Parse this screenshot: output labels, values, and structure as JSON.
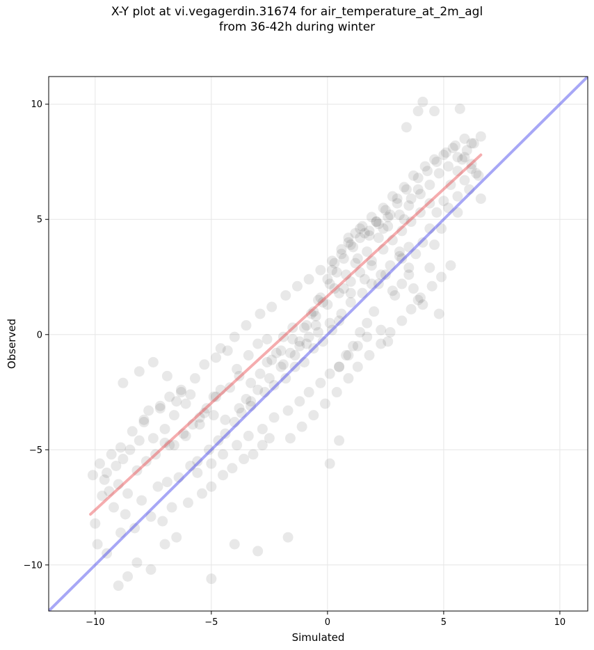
{
  "chart_data": {
    "type": "scatter",
    "title": "X-Y plot at vi.vegagerdin.31674 for air_temperature_at_2m_agl",
    "subtitle": "from 36-42h during winter",
    "xlabel": "Simulated",
    "ylabel": "Observed",
    "xlim": [
      -12.0,
      11.2
    ],
    "ylim": [
      -12.0,
      11.2
    ],
    "xticks": [
      -10,
      -5,
      0,
      5,
      10
    ],
    "yticks": [
      -10,
      -5,
      0,
      5,
      10
    ],
    "xtick_labels": [
      "−10",
      "−5",
      "0",
      "5",
      "10"
    ],
    "ytick_labels": [
      "−10",
      "−5",
      "0",
      "5",
      "10"
    ],
    "grid": true,
    "colors": {
      "points": "#000000",
      "fit_line": "#e8474b",
      "identity_line": "#3b3bea",
      "grid": "#e6e6e6"
    },
    "lines": [
      {
        "kind": "regression",
        "x": [
          -10.2,
          6.6
        ],
        "y": [
          -7.8,
          7.8
        ]
      },
      {
        "kind": "identity",
        "x": [
          -12.0,
          11.2
        ],
        "y": [
          -12.0,
          11.2
        ]
      }
    ],
    "points": {
      "x": [
        -10.1,
        -9.8,
        -9.6,
        -9.5,
        -9.3,
        -9.1,
        -8.9,
        -8.8,
        -8.5,
        -8.4,
        -8.1,
        -7.9,
        -7.7,
        -7.5,
        -7.2,
        -7.0,
        -6.8,
        -6.6,
        -6.3,
        -6.1,
        -9.7,
        -9.4,
        -9.0,
        -8.6,
        -8.2,
        -7.8,
        -7.4,
        -7.0,
        -6.6,
        -6.2,
        -5.8,
        -5.5,
        -5.2,
        -4.9,
        -4.6,
        -10.0,
        -9.2,
        -8.7,
        -8.0,
        -7.3,
        -6.9,
        -6.4,
        -5.9,
        -5.6,
        -5.1,
        -4.7,
        -4.4,
        -4.0,
        -3.7,
        -3.3,
        -9.9,
        -9.5,
        -8.9,
        -8.3,
        -7.6,
        -7.1,
        -6.7,
        -6.0,
        -5.4,
        -5.0,
        -4.5,
        -4.1,
        -3.6,
        -3.2,
        -2.8,
        -2.5,
        -8.8,
        -8.1,
        -7.5,
        -6.9,
        -6.3,
        -5.7,
        -5.3,
        -4.8,
        -4.3,
        -3.9,
        -3.4,
        -3.0,
        -2.6,
        -2.2,
        -1.9,
        -1.5,
        -7.9,
        -7.2,
        -6.5,
        -5.9,
        -5.3,
        -4.8,
        -4.2,
        -3.8,
        -3.3,
        -2.9,
        -2.4,
        -2.0,
        -1.6,
        -1.2,
        -0.8,
        -0.5,
        -6.8,
        -6.1,
        -5.5,
        -4.9,
        -4.4,
        -3.8,
        -3.3,
        -2.7,
        -2.3,
        -1.8,
        -1.4,
        -1.0,
        -0.6,
        -0.2,
        0.2,
        0.5,
        -5.6,
        -5.0,
        -4.5,
        -3.9,
        -3.4,
        -2.8,
        -2.3,
        -1.7,
        -1.2,
        -0.8,
        -0.3,
        0.1,
        0.5,
        0.9,
        1.3,
        1.7,
        -4.6,
        -4.0,
        -3.5,
        -2.9,
        -2.4,
        -1.8,
        -1.3,
        -0.8,
        -0.3,
        0.2,
        0.6,
        1.0,
        1.4,
        1.8,
        2.2,
        2.6,
        -3.5,
        -3.0,
        -2.5,
        -1.9,
        -1.4,
        -0.9,
        -0.4,
        0.1,
        0.6,
        1.0,
        1.5,
        1.9,
        2.3,
        2.7,
        3.1,
        3.5,
        -2.6,
        -2.0,
        -1.5,
        -1.0,
        -0.5,
        0.0,
        0.5,
        1.0,
        1.4,
        1.9,
        2.4,
        2.8,
        3.2,
        3.6,
        4.0,
        4.4,
        -1.6,
        -1.1,
        -0.6,
        -0.1,
        0.4,
        0.9,
        1.3,
        1.8,
        2.3,
        2.7,
        3.2,
        3.6,
        4.0,
        4.5,
        4.9,
        5.3,
        -0.7,
        -0.2,
        0.3,
        0.8,
        1.2,
        1.7,
        2.2,
        2.6,
        3.1,
        3.5,
        4.0,
        4.4,
        4.8,
        5.2,
        5.6,
        6.0,
        0.2,
        0.7,
        1.1,
        1.6,
        2.1,
        2.5,
        3.0,
        3.4,
        3.9,
        4.3,
        4.7,
        5.1,
        5.5,
        5.9,
        6.3,
        6.6,
        0.9,
        1.4,
        1.9,
        2.4,
        2.8,
        3.3,
        3.7,
        4.2,
        4.6,
        5.0,
        5.4,
        5.8,
        6.2,
        6.5,
        -0.4,
        0.0,
        0.3,
        0.6,
        0.9,
        1.2,
        1.5,
        1.8,
        2.1,
        2.4,
        2.7,
        3.0,
        3.3,
        3.6,
        3.9,
        -1.2,
        -0.9,
        -0.6,
        -0.3,
        0.1,
        0.4,
        0.7,
        1.0,
        1.3,
        1.6,
        1.9,
        2.2,
        2.5,
        2.8,
        3.1,
        3.2,
        3.5,
        3.7,
        3.9,
        4.1,
        4.4,
        4.6,
        4.9,
        5.2,
        5.6,
        5.9,
        6.2,
        6.4,
        6.6,
        0.5,
        0.8,
        1.1,
        1.4,
        1.7,
        2.0,
        2.3,
        2.6,
        2.9,
        3.2,
        3.5,
        3.8,
        4.1,
        4.4,
        4.7,
        5.0,
        5.3,
        5.6,
        5.9,
        6.2,
        -9.0,
        -8.6,
        -8.2,
        -7.6,
        -7.0,
        -6.5,
        -5.0,
        -4.0,
        -3.0,
        -1.7,
        0.1,
        0.5,
        3.4,
        3.9,
        4.1,
        4.6,
        5.7,
        4.8,
        5.6,
        6.1
      ],
      "y": [
        -6.1,
        -5.6,
        -6.3,
        -6.0,
        -5.2,
        -5.7,
        -4.9,
        -5.4,
        -5.0,
        -4.2,
        -4.6,
        -3.8,
        -3.3,
        -4.5,
        -3.1,
        -4.1,
        -2.7,
        -3.5,
        -2.4,
        -3.0,
        -7.0,
        -6.8,
        -6.5,
        -6.9,
        -5.9,
        -5.5,
        -5.2,
        -4.7,
        -4.8,
        -4.3,
        -3.9,
        -3.6,
        -3.2,
        -2.7,
        -2.4,
        -8.2,
        -7.5,
        -7.8,
        -7.2,
        -6.6,
        -6.4,
        -6.2,
        -5.7,
        -5.5,
        -5.0,
        -4.6,
        -4.3,
        -3.8,
        -3.4,
        -3.1,
        -9.1,
        -9.5,
        -8.6,
        -8.4,
        -7.9,
        -8.1,
        -7.5,
        -7.3,
        -6.9,
        -6.6,
        -6.1,
        -5.8,
        -5.4,
        -5.2,
        -4.8,
        -4.5,
        -2.1,
        -1.6,
        -1.2,
        -1.8,
        -2.5,
        -1.9,
        -1.3,
        -1.0,
        -0.7,
        -1.5,
        -0.9,
        -0.4,
        -0.2,
        -0.8,
        -0.1,
        0.3,
        -3.7,
        -3.2,
        -2.9,
        -2.6,
        -3.4,
        -2.7,
        -2.3,
        -1.8,
        -2.1,
        -1.7,
        -1.1,
        -1.4,
        -0.8,
        -0.5,
        -0.1,
        0.4,
        -4.8,
        -4.4,
        -3.9,
        -3.5,
        -3.7,
        -3.2,
        -2.9,
        -2.5,
        -2.2,
        -1.9,
        -1.4,
        -1.2,
        -0.6,
        -0.3,
        0.2,
        0.6,
        -6.0,
        -5.6,
        -5.2,
        -4.8,
        -4.4,
        -4.1,
        -3.6,
        -3.3,
        -2.9,
        -2.5,
        -2.1,
        -1.7,
        -1.4,
        -0.9,
        -0.5,
        -0.1,
        -0.6,
        -0.1,
        0.4,
        0.9,
        1.2,
        1.7,
        2.1,
        2.4,
        2.8,
        3.2,
        3.5,
        3.9,
        4.2,
        4.5,
        4.8,
        5.1,
        -2.8,
        -2.4,
        -1.9,
        -1.3,
        -0.9,
        -0.4,
        0.1,
        0.5,
        0.9,
        1.4,
        1.8,
        2.2,
        2.6,
        3.0,
        3.4,
        3.8,
        -1.2,
        -0.7,
        -0.2,
        0.3,
        0.8,
        1.3,
        1.8,
        2.3,
        2.7,
        3.2,
        3.7,
        4.1,
        4.5,
        4.9,
        5.3,
        5.7,
        -4.5,
        -4.0,
        -3.5,
        -3.0,
        -2.5,
        -1.9,
        -1.4,
        -0.9,
        -0.4,
        0.1,
        0.6,
        1.1,
        1.6,
        2.1,
        2.5,
        3.0,
        0.9,
        1.4,
        2.0,
        2.6,
        3.1,
        3.6,
        4.2,
        4.7,
        5.2,
        5.6,
        6.1,
        6.5,
        7.0,
        7.3,
        7.7,
        8.0,
        2.8,
        3.3,
        3.8,
        4.4,
        4.9,
        5.4,
        5.9,
        6.3,
        6.8,
        7.1,
        7.5,
        7.9,
        8.2,
        8.5,
        8.3,
        8.6,
        4.2,
        4.6,
        5.1,
        5.5,
        6.0,
        6.4,
        6.9,
        7.3,
        7.6,
        7.8,
        8.1,
        7.6,
        7.2,
        6.9,
        1.5,
        2.4,
        3.1,
        3.7,
        4.0,
        4.4,
        4.7,
        4.3,
        4.9,
        4.6,
        5.2,
        5.7,
        5.0,
        5.9,
        6.3,
        -0.3,
        0.4,
        1.0,
        1.6,
        2.2,
        2.7,
        2.0,
        1.8,
        3.3,
        2.4,
        3.0,
        2.2,
        2.6,
        1.9,
        3.6,
        3.3,
        2.6,
        2.0,
        1.5,
        1.3,
        2.9,
        3.9,
        4.6,
        5.5,
        6.0,
        6.7,
        7.4,
        7.0,
        5.9,
        -1.4,
        -0.9,
        -0.5,
        0.1,
        0.5,
        1.0,
        0.2,
        -0.3,
        1.7,
        2.2,
        2.9,
        3.5,
        4.0,
        4.6,
        5.3,
        5.8,
        6.5,
        7.1,
        7.7,
        8.3,
        -10.9,
        -10.5,
        -9.9,
        -10.2,
        -9.1,
        -8.8,
        -10.6,
        -9.1,
        -9.4,
        -8.8,
        -5.6,
        -4.6,
        9.0,
        9.7,
        10.1,
        9.7,
        9.8,
        0.9,
        5.3,
        6.3
      ]
    }
  }
}
